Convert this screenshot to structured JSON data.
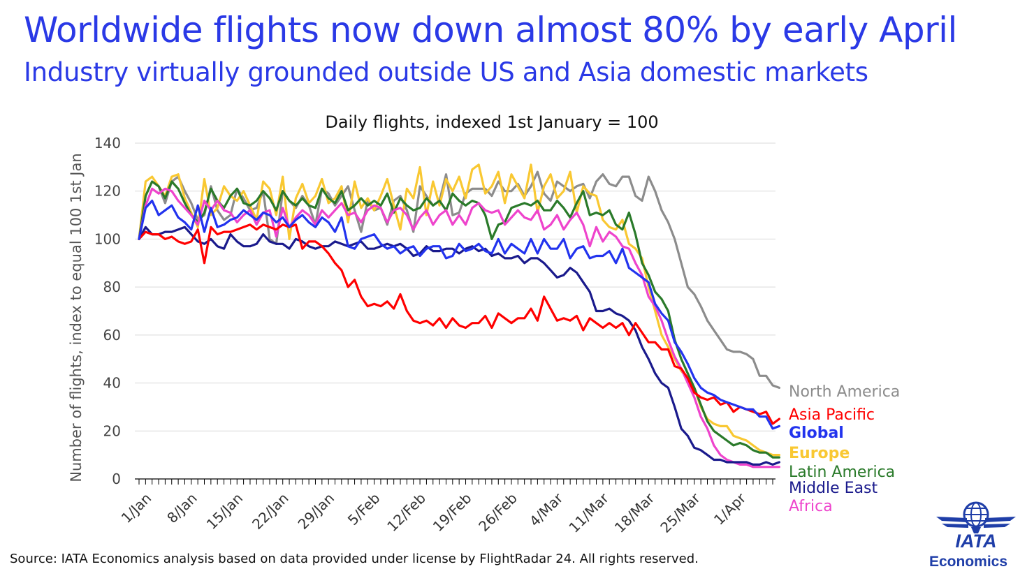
{
  "header": {
    "title": "Worldwide flights now down almost 80% by early April",
    "subtitle": "Industry virtually grounded outside US and Asia domestic markets"
  },
  "footer": {
    "source": "Source: IATA Economics analysis based on data provided under license by FlightRadar 24. All rights reserved.",
    "logo_text": "IATA",
    "logo_subtext": "Economics"
  },
  "chart_data": {
    "type": "line",
    "title": "Daily flights, indexed 1st January = 100",
    "ylabel": "Number of flights, index to equal 100 1st Jan",
    "xlabel": "",
    "ylim": [
      0,
      140
    ],
    "yticks": [
      0,
      20,
      40,
      60,
      80,
      100,
      120,
      140
    ],
    "x_day_count": 98,
    "x_tick_labels": [
      "1/Jan",
      "8/Jan",
      "15/Jan",
      "22/Jan",
      "29/Jan",
      "5/Feb",
      "12/Feb",
      "19/Feb",
      "26/Feb",
      "4/Mar",
      "11/Mar",
      "18/Mar",
      "25/Mar",
      "1/Apr"
    ],
    "x_tick_days": [
      0,
      7,
      14,
      21,
      28,
      35,
      42,
      49,
      56,
      63,
      70,
      77,
      84,
      91
    ],
    "grid": "horizontal",
    "legend_placement": "right, at line ends",
    "series": [
      {
        "name": "North America",
        "color": "#8c8c8c",
        "bold": false,
        "values": [
          100,
          118,
          124,
          122,
          115,
          124,
          126,
          120,
          115,
          108,
          110,
          122,
          112,
          108,
          110,
          121,
          117,
          112,
          113,
          120,
          100,
          98,
          120,
          116,
          113,
          118,
          114,
          106,
          121,
          119,
          114,
          118,
          122,
          112,
          103,
          116,
          112,
          113,
          106,
          116,
          118,
          112,
          103,
          122,
          118,
          114,
          116,
          127,
          110,
          111,
          119,
          121,
          121,
          121,
          118,
          124,
          120,
          120,
          123,
          118,
          122,
          128,
          119,
          116,
          124,
          122,
          120,
          122,
          123,
          117,
          124,
          127,
          123,
          122,
          126,
          126,
          118,
          116,
          126,
          120,
          112,
          107,
          100,
          90,
          80,
          77,
          72,
          66,
          62,
          58,
          54,
          53,
          53,
          52,
          50,
          43,
          43,
          39,
          38
        ]
      },
      {
        "name": "Asia Pacific",
        "color": "#ff0000",
        "bold": false,
        "values": [
          100,
          103,
          102,
          102,
          100,
          101,
          99,
          98,
          99,
          104,
          90,
          105,
          102,
          103,
          103,
          104,
          105,
          106,
          104,
          106,
          105,
          104,
          106,
          105,
          106,
          96,
          99,
          99,
          97,
          94,
          90,
          87,
          80,
          83,
          76,
          72,
          73,
          72,
          74,
          71,
          77,
          70,
          66,
          65,
          66,
          64,
          67,
          63,
          67,
          64,
          63,
          65,
          65,
          68,
          63,
          69,
          67,
          65,
          67,
          67,
          71,
          66,
          76,
          71,
          66,
          67,
          66,
          68,
          62,
          67,
          65,
          63,
          65,
          63,
          65,
          60,
          65,
          61,
          57,
          57,
          54,
          54,
          47,
          46,
          42,
          36,
          34,
          33,
          34,
          31,
          32,
          28,
          30,
          29,
          28,
          27,
          28,
          23,
          25
        ]
      },
      {
        "name": "Global",
        "color": "#2233ee",
        "bold": true,
        "values": [
          100,
          113,
          116,
          110,
          112,
          114,
          109,
          107,
          104,
          114,
          103,
          113,
          105,
          106,
          108,
          109,
          112,
          110,
          108,
          111,
          110,
          107,
          109,
          105,
          108,
          110,
          107,
          105,
          109,
          107,
          103,
          109,
          97,
          96,
          100,
          101,
          102,
          98,
          96,
          97,
          94,
          96,
          97,
          93,
          96,
          97,
          97,
          92,
          93,
          98,
          95,
          96,
          98,
          95,
          94,
          100,
          94,
          98,
          96,
          94,
          100,
          94,
          100,
          96,
          96,
          100,
          92,
          96,
          97,
          92,
          93,
          93,
          95,
          90,
          96,
          88,
          86,
          84,
          82,
          73,
          69,
          66,
          57,
          53,
          48,
          42,
          38,
          36,
          35,
          33,
          32,
          31,
          30,
          29,
          29,
          26,
          26,
          21,
          22
        ]
      },
      {
        "name": "Europe",
        "color": "#f9c832",
        "bold": true,
        "values": [
          100,
          124,
          126,
          122,
          118,
          126,
          127,
          117,
          111,
          105,
          125,
          110,
          113,
          122,
          118,
          116,
          120,
          114,
          108,
          124,
          121,
          110,
          126,
          100,
          117,
          123,
          115,
          118,
          125,
          115,
          117,
          122,
          107,
          124,
          113,
          117,
          112,
          118,
          125,
          114,
          104,
          121,
          117,
          130,
          110,
          124,
          114,
          125,
          120,
          126,
          117,
          129,
          131,
          119,
          122,
          128,
          115,
          127,
          122,
          117,
          131,
          111,
          122,
          127,
          117,
          120,
          128,
          111,
          122,
          119,
          118,
          108,
          105,
          104,
          108,
          98,
          96,
          92,
          80,
          70,
          60,
          55,
          50,
          45,
          42,
          38,
          30,
          25,
          23,
          22,
          22,
          18,
          17,
          16,
          14,
          12,
          11,
          10,
          10
        ]
      },
      {
        "name": "Latin America",
        "color": "#2a7a2a",
        "bold": false,
        "values": [
          100,
          118,
          124,
          122,
          117,
          124,
          121,
          115,
          110,
          107,
          111,
          121,
          116,
          113,
          118,
          121,
          115,
          114,
          116,
          120,
          117,
          112,
          120,
          116,
          114,
          117,
          114,
          113,
          121,
          117,
          115,
          120,
          112,
          114,
          117,
          114,
          116,
          114,
          119,
          111,
          117,
          114,
          112,
          113,
          117,
          114,
          116,
          112,
          119,
          116,
          114,
          116,
          115,
          110,
          100,
          106,
          107,
          113,
          114,
          115,
          114,
          116,
          112,
          112,
          116,
          113,
          109,
          115,
          120,
          110,
          111,
          110,
          112,
          106,
          104,
          111,
          102,
          90,
          85,
          78,
          75,
          70,
          58,
          50,
          44,
          38,
          31,
          24,
          20,
          18,
          16,
          14,
          15,
          14,
          12,
          11,
          11,
          9,
          9
        ]
      },
      {
        "name": "Middle East",
        "color": "#1a1a8c",
        "bold": false,
        "values": [
          100,
          105,
          102,
          102,
          103,
          103,
          104,
          105,
          102,
          99,
          98,
          100,
          97,
          96,
          102,
          99,
          97,
          97,
          98,
          102,
          99,
          98,
          98,
          96,
          100,
          99,
          97,
          96,
          97,
          97,
          99,
          98,
          97,
          98,
          99,
          96,
          96,
          97,
          98,
          97,
          98,
          96,
          93,
          94,
          97,
          95,
          95,
          96,
          96,
          94,
          96,
          97,
          95,
          96,
          93,
          94,
          92,
          92,
          93,
          90,
          92,
          92,
          90,
          87,
          84,
          85,
          88,
          86,
          82,
          78,
          70,
          70,
          71,
          69,
          68,
          66,
          62,
          55,
          50,
          44,
          40,
          38,
          30,
          21,
          18,
          13,
          12,
          10,
          8,
          8,
          7,
          7,
          7,
          7,
          6,
          6,
          7,
          6,
          7
        ]
      },
      {
        "name": "Africa",
        "color": "#ee44cc",
        "bold": false,
        "values": [
          100,
          114,
          121,
          119,
          121,
          120,
          116,
          113,
          110,
          106,
          116,
          112,
          116,
          112,
          111,
          107,
          110,
          112,
          106,
          111,
          112,
          101,
          113,
          105,
          109,
          112,
          110,
          106,
          112,
          109,
          112,
          115,
          110,
          111,
          107,
          112,
          114,
          113,
          107,
          112,
          113,
          110,
          104,
          109,
          112,
          106,
          110,
          112,
          106,
          110,
          106,
          113,
          115,
          112,
          111,
          112,
          106,
          109,
          112,
          109,
          108,
          112,
          104,
          106,
          110,
          104,
          108,
          111,
          106,
          97,
          105,
          99,
          103,
          101,
          97,
          96,
          90,
          85,
          76,
          72,
          66,
          58,
          51,
          46,
          40,
          34,
          26,
          21,
          14,
          10,
          8,
          7,
          6,
          6,
          5,
          5,
          5,
          5,
          5
        ]
      }
    ]
  }
}
